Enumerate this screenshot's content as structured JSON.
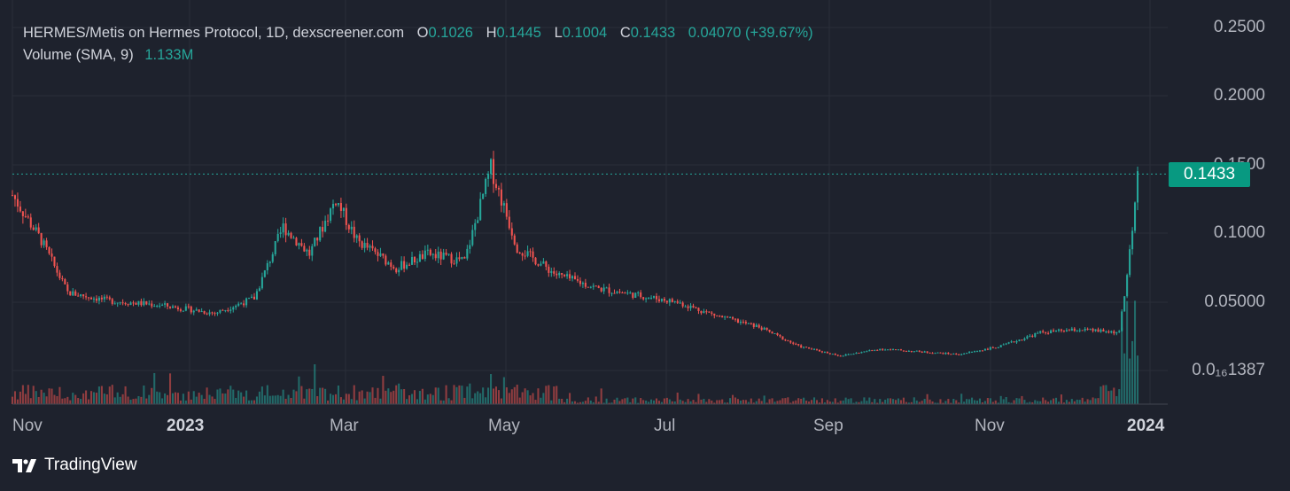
{
  "legend": {
    "symbol": "HERMES/Metis on Hermes Protocol, 1D, dexscreener.com",
    "open_label": "O",
    "open_value": "0.1026",
    "high_label": "H",
    "high_value": "0.1445",
    "low_label": "L",
    "low_value": "0.1004",
    "close_label": "C",
    "close_value": "0.1433",
    "change": "0.04070 (+39.67%)",
    "volume_label": "Volume (SMA, 9)",
    "volume_value": "1.133M"
  },
  "last_price": "0.1433",
  "branding": "TradingView",
  "colors": {
    "background": "#1e222d",
    "up": "#26a69a",
    "down": "#ef5350",
    "grid": "#2a2e39",
    "badge": "#089981"
  },
  "chart_data": {
    "type": "candlestick",
    "interval": "1D",
    "x_axis": {
      "tick_labels": [
        "Nov",
        "2023",
        "Mar",
        "May",
        "Jul",
        "Sep",
        "Nov",
        "2024"
      ]
    },
    "y_axis": {
      "tick_labels": [
        "0.2500",
        "0.2000",
        "0.1500",
        "0.1000",
        "0.05000",
        "0.0₁₆1387"
      ],
      "scale": "linear",
      "range": [
        0.0,
        0.26
      ]
    },
    "grid": true,
    "close_series_approx": {
      "dates": [
        "2022-10-25",
        "2022-11-05",
        "2022-11-15",
        "2022-12-01",
        "2022-12-20",
        "2023-01-10",
        "2023-01-25",
        "2023-02-05",
        "2023-02-15",
        "2023-02-25",
        "2023-03-05",
        "2023-03-20",
        "2023-04-01",
        "2023-04-15",
        "2023-04-25",
        "2023-05-05",
        "2023-05-20",
        "2023-06-05",
        "2023-06-20",
        "2023-07-05",
        "2023-07-20",
        "2023-08-05",
        "2023-08-20",
        "2023-09-05",
        "2023-09-20",
        "2023-10-05",
        "2023-10-20",
        "2023-11-05",
        "2023-11-20",
        "2023-12-05",
        "2023-12-20",
        "2023-12-25",
        "2023-12-27"
      ],
      "close": [
        0.128,
        0.095,
        0.057,
        0.051,
        0.048,
        0.042,
        0.053,
        0.105,
        0.085,
        0.125,
        0.095,
        0.075,
        0.085,
        0.08,
        0.148,
        0.09,
        0.07,
        0.06,
        0.055,
        0.05,
        0.04,
        0.032,
        0.018,
        0.011,
        0.016,
        0.014,
        0.012,
        0.018,
        0.028,
        0.03,
        0.028,
        0.1,
        0.1433
      ]
    },
    "volume_legend": {
      "label": "Volume (SMA, 9)",
      "value": "1.133M"
    },
    "last_price": 0.1433
  }
}
